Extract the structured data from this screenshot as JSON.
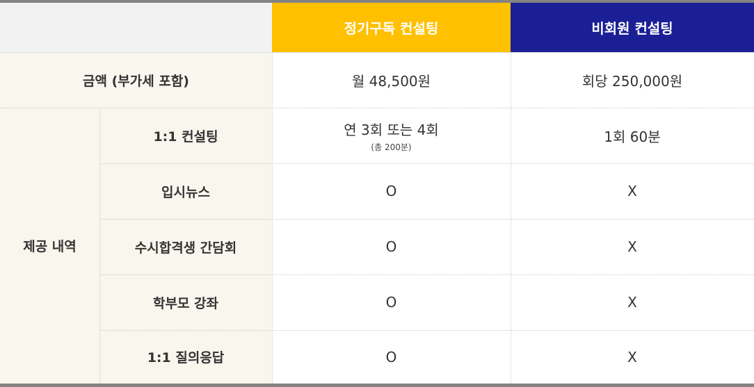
{
  "header": {
    "plan_subscription": "정기구독 컨설팅",
    "plan_nonmember": "비회원 컨설팅"
  },
  "colors": {
    "subscription_header": "#ffc000",
    "nonmember_header": "#1b1f95",
    "label_background": "#f8f6ed"
  },
  "price_row": {
    "label": "금액 (부가세 포함)",
    "subscription": "월 48,500원",
    "nonmember": "회당 250,000원"
  },
  "group_label": "제공 내역",
  "rows": [
    {
      "label": "1:1 컨설팅",
      "subscription": "연 3회 또는 4회",
      "subscription_note": "(총 200분)",
      "nonmember": "1회 60분"
    },
    {
      "label": "입시뉴스",
      "subscription": "O",
      "nonmember": "X"
    },
    {
      "label": "수시합격생 간담회",
      "subscription": "O",
      "nonmember": "X"
    },
    {
      "label": "학부모 강좌",
      "subscription": "O",
      "nonmember": "X"
    },
    {
      "label": "1:1 질의응답",
      "subscription": "O",
      "nonmember": "X"
    }
  ]
}
